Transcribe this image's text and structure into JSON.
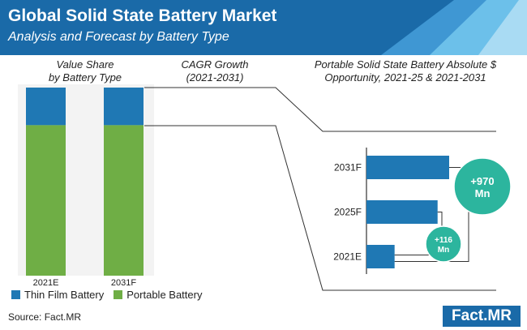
{
  "header": {
    "title": "Global Solid State Battery Market",
    "subtitle": "Analysis and Forecast by Battery Type"
  },
  "columns": {
    "share_line1": "Value Share",
    "share_line2": "by Battery Type",
    "cagr_line1": "CAGR Growth",
    "cagr_line2": "(2021-2031)",
    "opp_line1": "Portable Solid State Battery Absolute $",
    "opp_line2": "Opportunity, 2021-25 & 2021-2031"
  },
  "legend": {
    "thin_film": "Thin Film Battery",
    "portable": "Portable Battery"
  },
  "footer": {
    "source": "Source: Fact.MR",
    "logo": "Fact.MR"
  },
  "colors": {
    "header_blue": "#1a6aa8",
    "thin_film": "#1f78b4",
    "portable": "#6fae45",
    "bubble": "#2cb59e",
    "bar_blue": "#1f78b4"
  },
  "chart_data": [
    {
      "type": "bar",
      "subtype": "stacked-100",
      "categories": [
        "2021E",
        "2031F"
      ],
      "series": [
        {
          "name": "Thin Film Battery",
          "values": [
            20,
            20
          ]
        },
        {
          "name": "Portable Battery",
          "values": [
            80,
            80
          ]
        }
      ],
      "ylim": [
        0,
        100
      ],
      "legend": "bottom"
    },
    {
      "type": "bar",
      "orientation": "horizontal",
      "categories": [
        "2031F",
        "2025F",
        "2021E"
      ],
      "values": [
        100,
        86,
        34
      ],
      "annotations": [
        {
          "label": "+970 Mn",
          "from": "2021E",
          "to": "2031F"
        },
        {
          "label": "+116 Mn",
          "from": "2021E",
          "to": "2025F"
        }
      ]
    }
  ]
}
